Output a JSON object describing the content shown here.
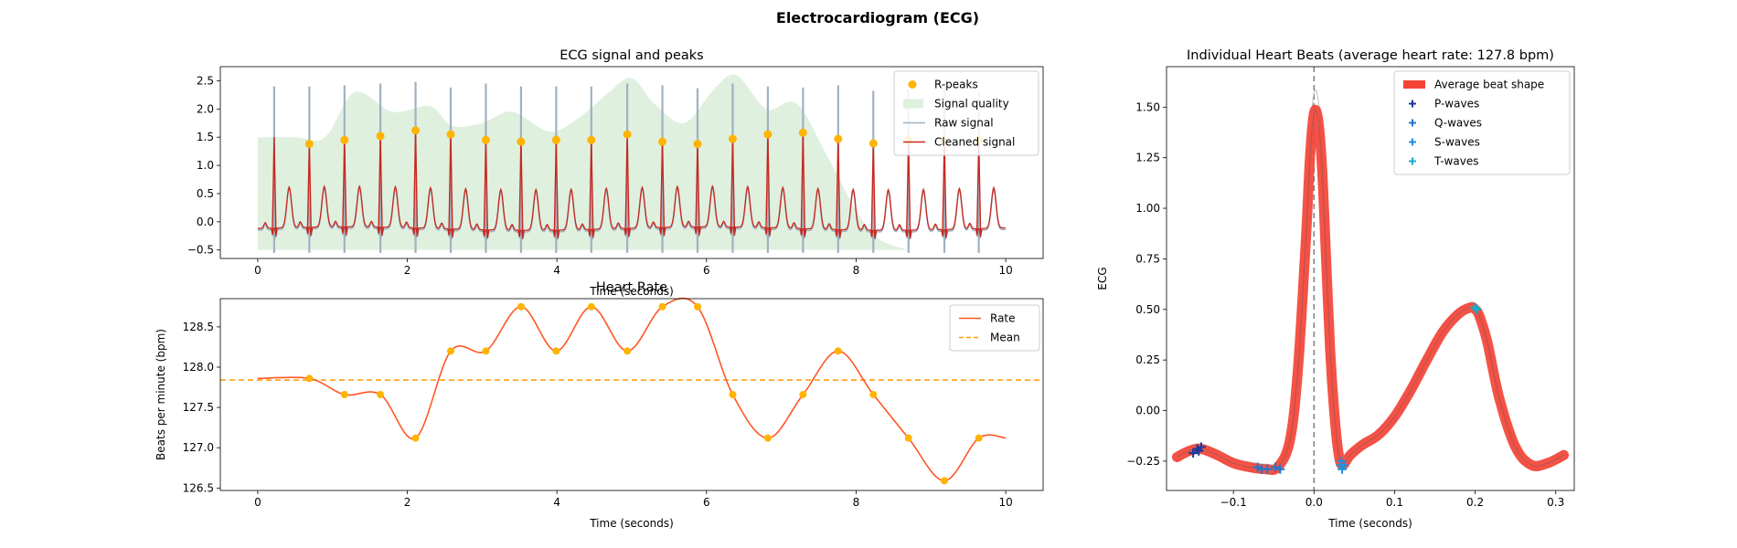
{
  "figure": {
    "suptitle": "Electrocardiogram (ECG)"
  },
  "colors": {
    "rpeaks": "#FFB400",
    "quality": "#DFF0DF",
    "raw": "#9FB1C2",
    "cleaned": "#C8281E",
    "rate": "#FF5722",
    "mean": "#FF9800",
    "avg_beat": "#F44336",
    "pwaves": "#1A3A9E",
    "qwaves": "#1E78D2",
    "swaves": "#1E90E0",
    "twaves": "#12B0C8",
    "individual_beats": "#BDBDBD",
    "zero_line": "#7F7F7F"
  },
  "chart_data": [
    {
      "id": "ecg",
      "type": "line",
      "title": "ECG signal and peaks",
      "xlabel": "Time (seconds)",
      "ylabel": "",
      "xlim": [
        -0.5,
        10.5
      ],
      "ylim": [
        -0.65,
        2.75
      ],
      "xticks": [
        "0",
        "2",
        "4",
        "6",
        "8",
        "10"
      ],
      "yticks": [
        "−0.5",
        "0.0",
        "0.5",
        "1.0",
        "1.5",
        "2.0",
        "2.5"
      ],
      "legend": {
        "position": "top-right",
        "entries": [
          "R-peaks",
          "Signal quality",
          "Raw signal",
          "Cleaned signal"
        ]
      },
      "r_peaks": {
        "x": [
          0.69,
          1.16,
          1.64,
          2.11,
          2.58,
          3.05,
          3.52,
          3.99,
          4.46,
          4.94,
          5.41,
          5.88,
          6.35,
          6.82,
          7.29,
          7.76,
          8.23,
          8.7,
          9.18,
          9.64
        ],
        "y": [
          1.38,
          1.45,
          1.52,
          1.62,
          1.55,
          1.45,
          1.42,
          1.45,
          1.45,
          1.55,
          1.42,
          1.38,
          1.47,
          1.55,
          1.58,
          1.47,
          1.39,
          1.45,
          1.42,
          1.45
        ]
      },
      "raw_spikes": {
        "x": [
          0.22,
          0.69,
          1.16,
          1.64,
          2.11,
          2.58,
          3.05,
          3.52,
          3.99,
          4.46,
          4.94,
          5.41,
          5.88,
          6.35,
          6.82,
          7.29,
          7.76,
          8.23,
          8.7,
          9.18,
          9.64
        ],
        "y": [
          2.4,
          2.4,
          2.42,
          2.45,
          2.48,
          2.38,
          2.45,
          2.4,
          2.4,
          2.4,
          2.45,
          2.42,
          2.37,
          2.45,
          2.4,
          2.38,
          2.42,
          2.32,
          2.35,
          2.38,
          2.3
        ]
      },
      "signal_quality": {
        "x": [
          0,
          0.5,
          0.9,
          1.3,
          1.8,
          2.3,
          2.6,
          3.0,
          3.4,
          3.9,
          4.3,
          4.7,
          5.0,
          5.3,
          5.7,
          6.1,
          6.4,
          6.8,
          7.2,
          7.6,
          8.0,
          8.3,
          8.7
        ],
        "y": [
          1.5,
          1.5,
          1.5,
          2.3,
          1.95,
          2.05,
          1.7,
          1.75,
          1.95,
          1.6,
          1.85,
          2.3,
          2.55,
          2.1,
          1.75,
          2.35,
          2.6,
          2.0,
          2.1,
          1.2,
          0.2,
          -0.3,
          -0.5
        ]
      }
    },
    {
      "id": "rate",
      "type": "line",
      "title": "Heart Rate",
      "xlabel": "Time (seconds)",
      "ylabel": "Beats per minute (bpm)",
      "xlim": [
        -0.5,
        10.5
      ],
      "ylim": [
        126.47,
        128.85
      ],
      "xticks": [
        "0",
        "2",
        "4",
        "6",
        "8",
        "10"
      ],
      "yticks": [
        "126.5",
        "127.0",
        "127.5",
        "128.0",
        "128.5"
      ],
      "legend": {
        "position": "top-right",
        "entries": [
          "Rate",
          "Mean"
        ]
      },
      "series": [
        {
          "name": "Rate",
          "x": [
            0,
            0.69,
            1.16,
            1.64,
            2.11,
            2.58,
            3.05,
            3.52,
            3.99,
            4.46,
            4.94,
            5.41,
            5.88,
            6.35,
            6.82,
            7.29,
            7.76,
            8.23,
            8.7,
            9.18,
            9.64,
            10.0
          ],
          "y": [
            127.86,
            127.86,
            127.66,
            127.66,
            127.12,
            128.2,
            128.2,
            128.75,
            128.2,
            128.75,
            128.2,
            128.75,
            128.75,
            127.66,
            127.12,
            127.66,
            128.2,
            127.66,
            127.12,
            126.59,
            127.12,
            127.12
          ]
        }
      ],
      "peaks": {
        "x": [
          0.69,
          1.16,
          1.64,
          2.11,
          2.58,
          3.05,
          3.52,
          3.99,
          4.46,
          4.94,
          5.41,
          5.88,
          6.35,
          6.82,
          7.29,
          7.76,
          8.23,
          8.7,
          9.18,
          9.64
        ],
        "y": [
          127.86,
          127.66,
          127.66,
          127.12,
          128.2,
          128.2,
          128.75,
          128.2,
          128.75,
          128.2,
          128.75,
          128.75,
          127.66,
          127.12,
          127.66,
          128.2,
          127.66,
          127.12,
          126.59,
          127.12
        ]
      },
      "mean": 127.84
    },
    {
      "id": "beats",
      "type": "line",
      "title": "Individual Heart Beats (average heart rate: 127.8 bpm)",
      "xlabel": "Time (seconds)",
      "ylabel": "ECG",
      "xlim": [
        -0.183,
        0.323
      ],
      "ylim": [
        -0.395,
        1.7
      ],
      "xticks": [
        "−0.1",
        "0.0",
        "0.1",
        "0.2",
        "0.3"
      ],
      "yticks": [
        "−0.25",
        "0.00",
        "0.25",
        "0.50",
        "0.75",
        "1.00",
        "1.25",
        "1.50"
      ],
      "legend": {
        "position": "top-right",
        "entries": [
          "Average beat shape",
          "P-waves",
          "Q-waves",
          "S-waves",
          "T-waves"
        ]
      },
      "avg_beat": {
        "x": [
          -0.17,
          -0.155,
          -0.14,
          -0.12,
          -0.1,
          -0.08,
          -0.06,
          -0.045,
          -0.03,
          -0.02,
          -0.01,
          -0.005,
          0.0,
          0.005,
          0.01,
          0.015,
          0.02,
          0.025,
          0.03,
          0.035,
          0.045,
          0.06,
          0.08,
          0.1,
          0.12,
          0.14,
          0.16,
          0.18,
          0.195,
          0.2,
          0.205,
          0.215,
          0.23,
          0.25,
          0.27,
          0.29,
          0.31
        ],
        "y": [
          -0.23,
          -0.2,
          -0.19,
          -0.22,
          -0.26,
          -0.28,
          -0.29,
          -0.28,
          -0.15,
          0.2,
          0.85,
          1.25,
          1.47,
          1.44,
          1.2,
          0.75,
          0.3,
          0.0,
          -0.2,
          -0.27,
          -0.22,
          -0.17,
          -0.12,
          -0.03,
          0.1,
          0.25,
          0.39,
          0.48,
          0.51,
          0.5,
          0.47,
          0.34,
          0.06,
          -0.18,
          -0.27,
          -0.26,
          -0.22
        ]
      },
      "p_waves": {
        "x": [
          -0.15,
          -0.145,
          -0.14,
          -0.143
        ],
        "y": [
          -0.21,
          -0.19,
          -0.18,
          -0.2
        ]
      },
      "q_waves": {
        "x": [
          -0.07,
          -0.065,
          -0.058,
          -0.048,
          -0.042
        ],
        "y": [
          -0.28,
          -0.29,
          -0.29,
          -0.28,
          -0.29
        ]
      },
      "s_waves": {
        "x": [
          0.033,
          0.035,
          0.037,
          0.034
        ],
        "y": [
          -0.27,
          -0.29,
          -0.27,
          -0.25
        ]
      },
      "t_waves": {
        "x": [
          0.2,
          0.202
        ],
        "y": [
          0.51,
          0.5
        ]
      }
    }
  ]
}
